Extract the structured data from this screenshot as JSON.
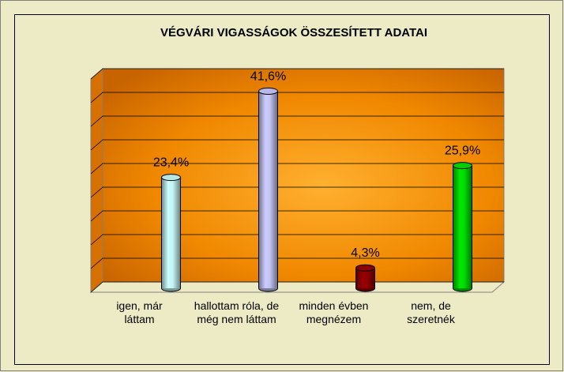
{
  "chart_data": {
    "type": "bar3d",
    "title": "VÉGVÁRI VIGASSÁGOK ÖSSZESÍTETT ADATAI",
    "categories": [
      "igen, már láttam",
      "hallottam róla, de még nem láttam",
      "minden évben megnézem",
      "nem, de szeretnék"
    ],
    "values": [
      23.4,
      41.6,
      4.3,
      25.9
    ],
    "value_labels": [
      "23,4%",
      "41,6%",
      "4,3%",
      "25,9%"
    ],
    "colors": [
      "#ccffff",
      "#ccccff",
      "#990000",
      "#00e600"
    ],
    "ylim": [
      0,
      45
    ],
    "yticks": [
      0,
      5,
      10,
      15,
      20,
      25,
      30,
      35,
      40,
      45
    ],
    "grid": true
  }
}
